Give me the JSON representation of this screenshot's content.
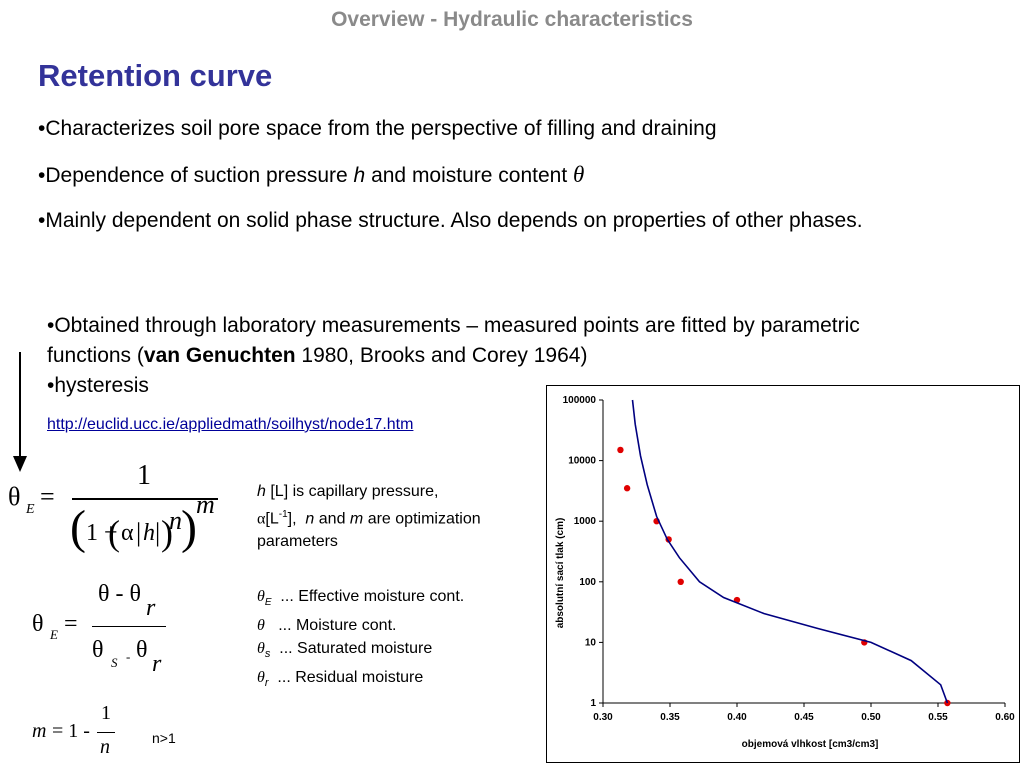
{
  "header": {
    "title": "Overview - Hydraulic characteristics"
  },
  "main": {
    "title": "Retention curve",
    "bullets": [
      "•Characterizes soil pore space from the perspective of filling and draining",
      "•Dependence of suction pressure ",
      "h",
      " and moisture content ",
      "θ",
      "•Mainly dependent on solid phase structure. Also depends on properties of other phases."
    ],
    "bullets2": {
      "b1_pre": "•Obtained through laboratory measurements – measured points are fitted by parametric functions (",
      "b1_bold": "van Genuchten",
      "b1_post": " 1980, Brooks and Corey 1964)",
      "b2": "•hysteresis"
    },
    "link": "http://euclid.ucc.ie/appliedmath/soilhyst/node17.htm"
  },
  "equations": {
    "eq1": {
      "lhs": "θ",
      "lhs_sub": "E",
      "eq": "=",
      "num": "1",
      "one_plus": "1 + ",
      "alpha": "α",
      "h": "h",
      "n": "n",
      "m": "m"
    },
    "eq2": {
      "lhs": "θ",
      "lhs_sub": "E",
      "eq": "=",
      "num": "θ - θ",
      "num_sub": "r",
      "den": "θ",
      "den_s": "S",
      "den_minus": "-",
      "den_theta2": "θ",
      "den_sub": "r"
    },
    "eq3": {
      "lhs": "m",
      "eq": "= 1 -",
      "num": "1",
      "den": "n",
      "cond": "n>1"
    }
  },
  "params": {
    "l1_h": "h",
    "l1": " [L] is capillary pressure,",
    "l2_alpha": "α",
    "l2_unit": "[L",
    "l2_exp": "-1",
    "l2_rest": "],",
    "l2_n": "n",
    "l2_and": " and ",
    "l2_m": "m",
    "l2_tail": " are optimization",
    "l3": "parameters"
  },
  "legend": [
    {
      "sym": "θ",
      "sub": "E",
      "text": "  ... Effective moisture cont."
    },
    {
      "sym": "θ",
      "sub": "",
      "text": "   ... Moisture cont."
    },
    {
      "sym": "θ",
      "sub": "s",
      "text": "  ... Saturated moisture"
    },
    {
      "sym": "θ",
      "sub": "r",
      "text": "  ... Residual moisture"
    }
  ],
  "chart_data": {
    "type": "scatter",
    "xlabel": "objemová vlhkost [cm3/cm3]",
    "ylabel": "absolutní sací tlak (cm)",
    "xlim": [
      0.3,
      0.6
    ],
    "ylim": [
      1,
      100000
    ],
    "y_scale": "log",
    "x_ticks": [
      "0.30",
      "0.35",
      "0.40",
      "0.45",
      "0.50",
      "0.55",
      "0.60"
    ],
    "y_ticks": [
      "1",
      "10",
      "100",
      "1000",
      "10000",
      "100000"
    ],
    "grid": false,
    "series": [
      {
        "kind": "points",
        "color": "#e00000",
        "x": [
          0.313,
          0.318,
          0.34,
          0.349,
          0.358,
          0.4,
          0.495,
          0.557
        ],
        "y": [
          15000,
          3500,
          1000,
          500,
          100,
          50,
          10,
          1
        ]
      },
      {
        "kind": "line",
        "color": "#000080",
        "x": [
          0.322,
          0.324,
          0.328,
          0.333,
          0.34,
          0.348,
          0.357,
          0.372,
          0.39,
          0.42,
          0.46,
          0.5,
          0.53,
          0.552,
          0.557
        ],
        "y": [
          100000,
          40000,
          12000,
          4000,
          1200,
          500,
          250,
          100,
          55,
          30,
          17,
          10,
          5,
          2,
          1
        ]
      }
    ]
  }
}
